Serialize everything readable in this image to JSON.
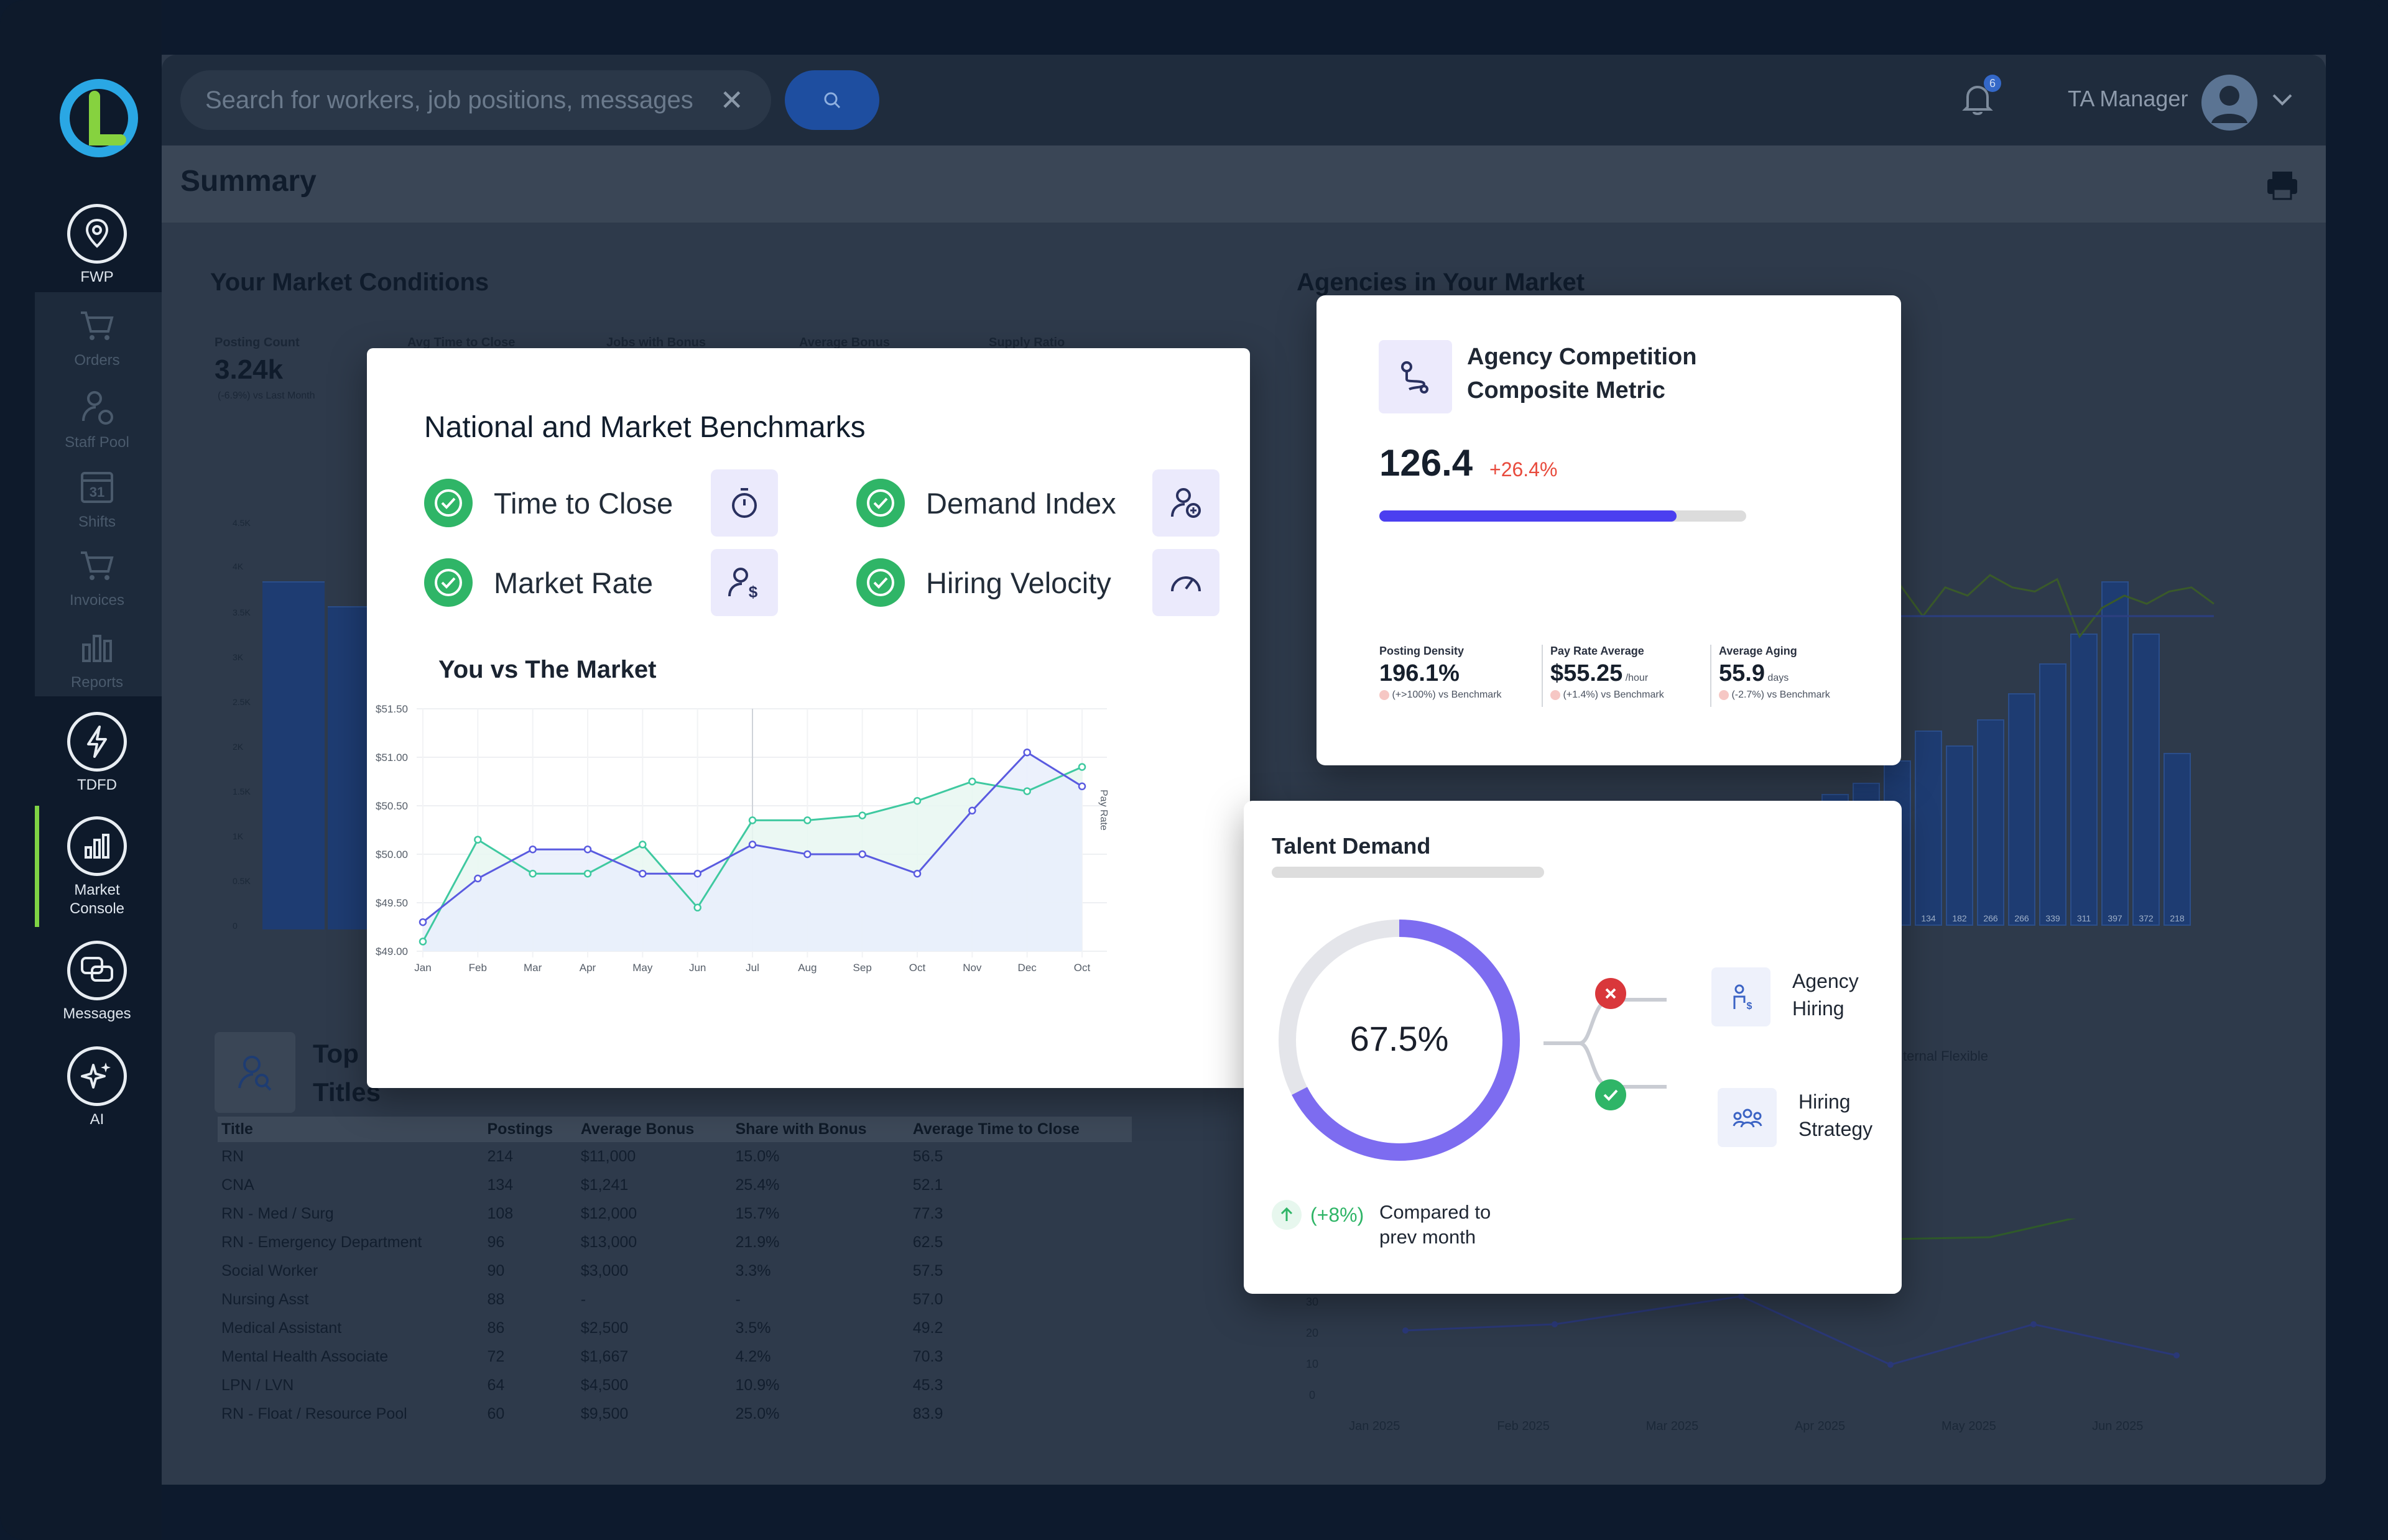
{
  "nav": {
    "items": [
      {
        "label": "FWP"
      },
      {
        "label": "Orders"
      },
      {
        "label": "Staff Pool"
      },
      {
        "label": "Shifts"
      },
      {
        "label": "Invoices"
      },
      {
        "label": "Reports"
      },
      {
        "label": "TDFD"
      },
      {
        "label": "Market Console"
      },
      {
        "label": "Messages"
      },
      {
        "label": "AI"
      }
    ],
    "calendar_day": "31"
  },
  "header": {
    "search_placeholder": "Search for workers, job positions, messages",
    "notification_count": "6",
    "user_role": "TA Manager"
  },
  "page": {
    "title": "Summary"
  },
  "market_conditions": {
    "title": "Your Market Conditions",
    "kpis": [
      {
        "label": "Posting Count",
        "value": "3.24k",
        "delta": "(-6.9%) vs Last Month"
      },
      {
        "label": "Avg Time to Close"
      },
      {
        "label": "Jobs with Bonus"
      },
      {
        "label": "Average Bonus"
      },
      {
        "label": "Supply Ratio"
      }
    ]
  },
  "agencies_title": "Agencies in Your Market",
  "top_titles": {
    "heading": "Top Titles",
    "columns": [
      "Title",
      "Postings",
      "Average Bonus",
      "Share with Bonus",
      "Average Time to Close"
    ],
    "rows": [
      [
        "RN",
        "214",
        "$11,000",
        "15.0%",
        "56.5"
      ],
      [
        "CNA",
        "134",
        "$1,241",
        "25.4%",
        "52.1"
      ],
      [
        "RN - Med / Surg",
        "108",
        "$12,000",
        "15.7%",
        "77.3"
      ],
      [
        "RN - Emergency Department",
        "96",
        "$13,000",
        "21.9%",
        "62.5"
      ],
      [
        "Social Worker",
        "90",
        "$3,000",
        "3.3%",
        "57.5"
      ],
      [
        "Nursing Asst",
        "88",
        "-",
        "-",
        "57.0"
      ],
      [
        "Medical Assistant",
        "86",
        "$2,500",
        "3.5%",
        "49.2"
      ],
      [
        "Mental Health Associate",
        "72",
        "$1,667",
        "4.2%",
        "70.3"
      ],
      [
        "LPN / LVN",
        "64",
        "$4,500",
        "10.9%",
        "45.3"
      ],
      [
        "RN - Float / Resource Pool",
        "60",
        "$9,500",
        "25.0%",
        "83.9"
      ]
    ]
  },
  "benchmarks": {
    "title": "National and Market Benchmarks",
    "items": [
      {
        "label": "Time to Close",
        "icon": "stopwatch-icon"
      },
      {
        "label": "Demand Index",
        "icon": "person-plus-icon"
      },
      {
        "label": "Market Rate",
        "icon": "person-dollar-icon"
      },
      {
        "label": "Hiring Velocity",
        "icon": "speedometer-icon"
      }
    ],
    "chart_title": "You vs The Market"
  },
  "chart_data": {
    "type": "line",
    "title": "You vs The Market",
    "xlabel": "",
    "ylabel": "Pay Rate",
    "categories": [
      "Jan",
      "Feb",
      "Mar",
      "Apr",
      "May",
      "Jun",
      "Jul",
      "Aug",
      "Sep",
      "Oct",
      "Nov",
      "Dec",
      "Oct"
    ],
    "ytick_labels": [
      "$49.00",
      "$49.50",
      "$50.00",
      "$50.50",
      "$51.00",
      "$51.50"
    ],
    "ylim": [
      49.0,
      51.5
    ],
    "series": [
      {
        "name": "You",
        "color": "#3fc9a0",
        "values": [
          49.1,
          50.15,
          49.8,
          49.8,
          50.1,
          49.45,
          50.35,
          50.35,
          50.4,
          50.55,
          50.75,
          50.65,
          50.9
        ]
      },
      {
        "name": "Market",
        "color": "#5a5be0",
        "values": [
          49.3,
          49.75,
          50.05,
          50.05,
          49.8,
          49.8,
          50.1,
          50.0,
          50.0,
          49.8,
          50.45,
          51.05,
          50.7
        ]
      }
    ]
  },
  "agency_metric": {
    "title_line1": "Agency Competition",
    "title_line2": "Composite Metric",
    "value": "126.4",
    "delta": "+26.4%",
    "progress": 0.81,
    "accent": "#4b3ff0",
    "stats": [
      {
        "label": "Posting Density",
        "value": "196.1%",
        "unit": "",
        "delta": "(+>100%) vs Benchmark"
      },
      {
        "label": "Pay Rate Average",
        "value": "$55.25",
        "unit": "/hour",
        "delta": "(+1.4%) vs Benchmark"
      },
      {
        "label": "Average Aging",
        "value": "55.9",
        "unit": "days",
        "delta": "(-2.7%) vs Benchmark"
      }
    ]
  },
  "talent": {
    "title": "Talent Demand",
    "percent": "67.5%",
    "percent_value": 67.5,
    "compare_delta": "(+8%)",
    "compare_line1": "Compared to",
    "compare_line2": "prev month",
    "branches": [
      {
        "line1": "Agency",
        "line2": "Hiring",
        "status": "fail"
      },
      {
        "line1": "Hiring",
        "line2": "Strategy",
        "status": "pass"
      }
    ]
  },
  "background_chart": {
    "bar_labels": [
      "134",
      "182",
      "266",
      "266",
      "339",
      "311",
      "397",
      "372",
      "218"
    ],
    "legend_fragment": "ternal Flexible",
    "month_labels": [
      "Jan 2025",
      "Feb 2025",
      "Mar 2025",
      "Apr 2025",
      "May 2025",
      "Jun 2025"
    ],
    "y_labels": [
      "30",
      "20",
      "10",
      "0"
    ]
  }
}
